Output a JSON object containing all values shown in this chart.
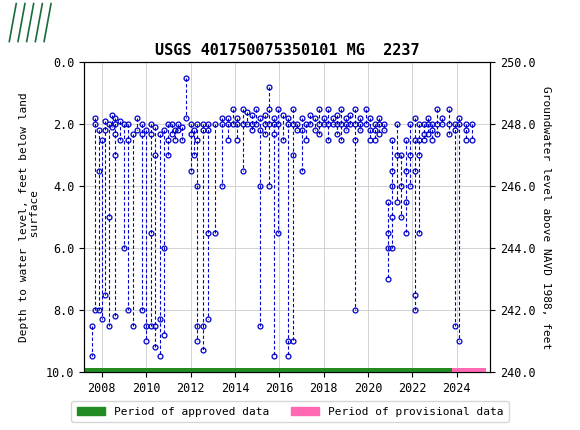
{
  "title": "USGS 401750075350101 MG  2237",
  "ylabel_left": "Depth to water level, feet below land\n surface",
  "ylabel_right": "Groundwater level above NAVD 1988, feet",
  "ylim_left": [
    10.0,
    0.0
  ],
  "ylim_right": [
    240.0,
    250.0
  ],
  "xlim": [
    2007.2,
    2025.5
  ],
  "yticks_left": [
    0.0,
    2.0,
    4.0,
    6.0,
    8.0,
    10.0
  ],
  "yticks_right": [
    240.0,
    242.0,
    244.0,
    246.0,
    248.0,
    250.0
  ],
  "xticks": [
    2008,
    2010,
    2012,
    2014,
    2016,
    2018,
    2020,
    2022,
    2024
  ],
  "header_color": "#1a6b3c",
  "data_color": "#0000cc",
  "approved_color": "#228B22",
  "provisional_color": "#FF69B4",
  "background_color": "#ffffff",
  "grid_color": "#cccccc",
  "approved_start": 2007.2,
  "approved_end": 2023.8,
  "provisional_start": 2023.8,
  "provisional_end": 2025.3,
  "series": [
    {
      "x": 2007.55,
      "values": [
        8.5,
        9.5
      ]
    },
    {
      "x": 2007.7,
      "values": [
        1.8,
        2.0,
        8.0
      ]
    },
    {
      "x": 2007.85,
      "values": [
        2.2,
        3.5,
        8.0
      ]
    },
    {
      "x": 2008.0,
      "values": [
        2.5,
        8.3
      ]
    },
    {
      "x": 2008.15,
      "values": [
        1.9,
        2.2,
        7.5
      ]
    },
    {
      "x": 2008.3,
      "values": [
        2.0,
        5.0,
        8.5
      ]
    },
    {
      "x": 2008.45,
      "values": [
        1.7,
        2.1
      ]
    },
    {
      "x": 2008.6,
      "values": [
        1.8,
        2.0,
        2.3,
        3.0,
        8.2
      ]
    },
    {
      "x": 2008.8,
      "values": [
        1.9,
        2.5
      ]
    },
    {
      "x": 2009.0,
      "values": [
        2.0,
        6.0
      ]
    },
    {
      "x": 2009.2,
      "values": [
        2.0,
        2.5,
        8.0
      ]
    },
    {
      "x": 2009.4,
      "values": [
        2.3,
        8.5
      ]
    },
    {
      "x": 2009.6,
      "values": [
        1.8,
        2.2
      ]
    },
    {
      "x": 2009.8,
      "values": [
        2.0,
        2.3,
        8.0
      ]
    },
    {
      "x": 2010.0,
      "values": [
        2.2,
        8.5,
        9.0
      ]
    },
    {
      "x": 2010.2,
      "values": [
        2.0,
        2.3,
        5.5,
        8.5
      ]
    },
    {
      "x": 2010.4,
      "values": [
        2.1,
        3.0,
        8.5,
        9.2
      ]
    },
    {
      "x": 2010.6,
      "values": [
        2.3,
        8.3,
        9.5
      ]
    },
    {
      "x": 2010.8,
      "values": [
        2.2,
        6.0,
        8.8
      ]
    },
    {
      "x": 2011.0,
      "values": [
        2.0,
        2.5,
        3.0
      ]
    },
    {
      "x": 2011.15,
      "values": [
        2.0,
        2.3
      ]
    },
    {
      "x": 2011.3,
      "values": [
        2.2,
        2.5
      ]
    },
    {
      "x": 2011.45,
      "values": [
        2.0,
        2.2
      ]
    },
    {
      "x": 2011.6,
      "values": [
        2.1,
        2.5
      ]
    },
    {
      "x": 2011.8,
      "values": [
        0.5,
        1.8
      ]
    },
    {
      "x": 2012.0,
      "values": [
        2.0,
        2.3,
        3.5
      ]
    },
    {
      "x": 2012.15,
      "values": [
        2.2,
        3.0
      ]
    },
    {
      "x": 2012.3,
      "values": [
        2.0,
        2.5,
        4.0,
        8.5,
        9.0
      ]
    },
    {
      "x": 2012.55,
      "values": [
        2.0,
        2.2,
        8.5,
        9.3
      ]
    },
    {
      "x": 2012.8,
      "values": [
        2.0,
        2.2,
        5.5,
        8.3
      ]
    },
    {
      "x": 2013.1,
      "values": [
        2.0,
        5.5
      ]
    },
    {
      "x": 2013.4,
      "values": [
        1.8,
        2.0,
        4.0
      ]
    },
    {
      "x": 2013.7,
      "values": [
        1.8,
        2.0,
        2.5
      ]
    },
    {
      "x": 2013.9,
      "values": [
        1.5,
        2.0
      ]
    },
    {
      "x": 2014.1,
      "values": [
        1.8,
        2.0,
        2.5
      ]
    },
    {
      "x": 2014.35,
      "values": [
        1.5,
        2.0,
        3.5
      ]
    },
    {
      "x": 2014.55,
      "values": [
        1.6,
        2.0
      ]
    },
    {
      "x": 2014.75,
      "values": [
        1.7,
        2.0,
        2.2
      ]
    },
    {
      "x": 2014.95,
      "values": [
        1.5,
        2.0
      ]
    },
    {
      "x": 2015.15,
      "values": [
        1.8,
        2.2,
        4.0,
        8.5
      ]
    },
    {
      "x": 2015.35,
      "values": [
        1.7,
        2.0,
        2.3
      ]
    },
    {
      "x": 2015.55,
      "values": [
        0.8,
        1.5,
        2.0,
        4.0
      ]
    },
    {
      "x": 2015.75,
      "values": [
        1.8,
        2.0,
        2.3,
        9.5
      ]
    },
    {
      "x": 2015.95,
      "values": [
        1.5,
        2.0,
        5.5
      ]
    },
    {
      "x": 2016.15,
      "values": [
        1.7,
        2.5
      ]
    },
    {
      "x": 2016.4,
      "values": [
        1.8,
        2.0,
        9.0,
        9.5
      ]
    },
    {
      "x": 2016.6,
      "values": [
        1.5,
        2.0,
        3.0,
        9.0
      ]
    },
    {
      "x": 2016.8,
      "values": [
        2.0,
        2.2
      ]
    },
    {
      "x": 2017.0,
      "values": [
        1.8,
        2.2,
        3.5
      ]
    },
    {
      "x": 2017.2,
      "values": [
        2.0,
        2.5
      ]
    },
    {
      "x": 2017.4,
      "values": [
        1.7,
        2.0
      ]
    },
    {
      "x": 2017.6,
      "values": [
        1.8,
        2.2
      ]
    },
    {
      "x": 2017.8,
      "values": [
        1.5,
        2.0,
        2.3
      ]
    },
    {
      "x": 2018.0,
      "values": [
        1.8,
        2.0
      ]
    },
    {
      "x": 2018.2,
      "values": [
        1.5,
        2.0,
        2.5
      ]
    },
    {
      "x": 2018.4,
      "values": [
        1.8,
        2.0
      ]
    },
    {
      "x": 2018.6,
      "values": [
        1.7,
        2.0,
        2.3
      ]
    },
    {
      "x": 2018.8,
      "values": [
        1.5,
        2.0,
        2.5
      ]
    },
    {
      "x": 2019.0,
      "values": [
        1.8,
        2.0,
        2.2
      ]
    },
    {
      "x": 2019.2,
      "values": [
        1.7,
        2.0
      ]
    },
    {
      "x": 2019.4,
      "values": [
        1.5,
        2.0,
        2.5,
        8.0
      ]
    },
    {
      "x": 2019.65,
      "values": [
        1.8,
        2.0,
        2.2
      ]
    },
    {
      "x": 2019.9,
      "values": [
        1.5,
        2.0
      ]
    },
    {
      "x": 2020.1,
      "values": [
        1.8,
        2.2,
        2.5
      ]
    },
    {
      "x": 2020.3,
      "values": [
        2.0,
        2.2,
        2.5
      ]
    },
    {
      "x": 2020.5,
      "values": [
        1.8,
        2.0,
        2.3
      ]
    },
    {
      "x": 2020.7,
      "values": [
        2.0,
        2.2
      ]
    },
    {
      "x": 2020.9,
      "values": [
        4.5,
        5.5,
        6.0,
        7.0
      ]
    },
    {
      "x": 2021.1,
      "values": [
        2.5,
        3.5,
        4.0,
        5.0,
        6.0
      ]
    },
    {
      "x": 2021.3,
      "values": [
        2.0,
        3.0,
        4.5
      ]
    },
    {
      "x": 2021.5,
      "values": [
        3.0,
        4.0,
        5.0
      ]
    },
    {
      "x": 2021.7,
      "values": [
        2.5,
        3.5,
        4.5,
        5.5
      ]
    },
    {
      "x": 2021.9,
      "values": [
        2.0,
        3.0,
        4.0
      ]
    },
    {
      "x": 2022.1,
      "values": [
        1.8,
        2.5,
        3.5,
        7.5,
        8.0
      ]
    },
    {
      "x": 2022.3,
      "values": [
        2.0,
        2.5,
        3.0,
        5.5
      ]
    },
    {
      "x": 2022.5,
      "values": [
        2.0,
        2.3,
        2.5
      ]
    },
    {
      "x": 2022.7,
      "values": [
        1.8,
        2.0,
        2.3
      ]
    },
    {
      "x": 2022.9,
      "values": [
        2.0,
        2.2,
        2.5
      ]
    },
    {
      "x": 2023.1,
      "values": [
        1.5,
        2.0,
        2.3
      ]
    },
    {
      "x": 2023.35,
      "values": [
        1.8,
        2.0
      ]
    },
    {
      "x": 2023.65,
      "values": [
        1.5,
        2.0,
        2.3
      ]
    },
    {
      "x": 2023.9,
      "values": [
        2.0,
        2.2,
        8.5
      ]
    },
    {
      "x": 2024.1,
      "values": [
        1.8,
        2.0,
        9.0
      ]
    },
    {
      "x": 2024.4,
      "values": [
        2.0,
        2.2,
        2.5
      ]
    },
    {
      "x": 2024.7,
      "values": [
        2.0,
        2.5
      ]
    }
  ]
}
